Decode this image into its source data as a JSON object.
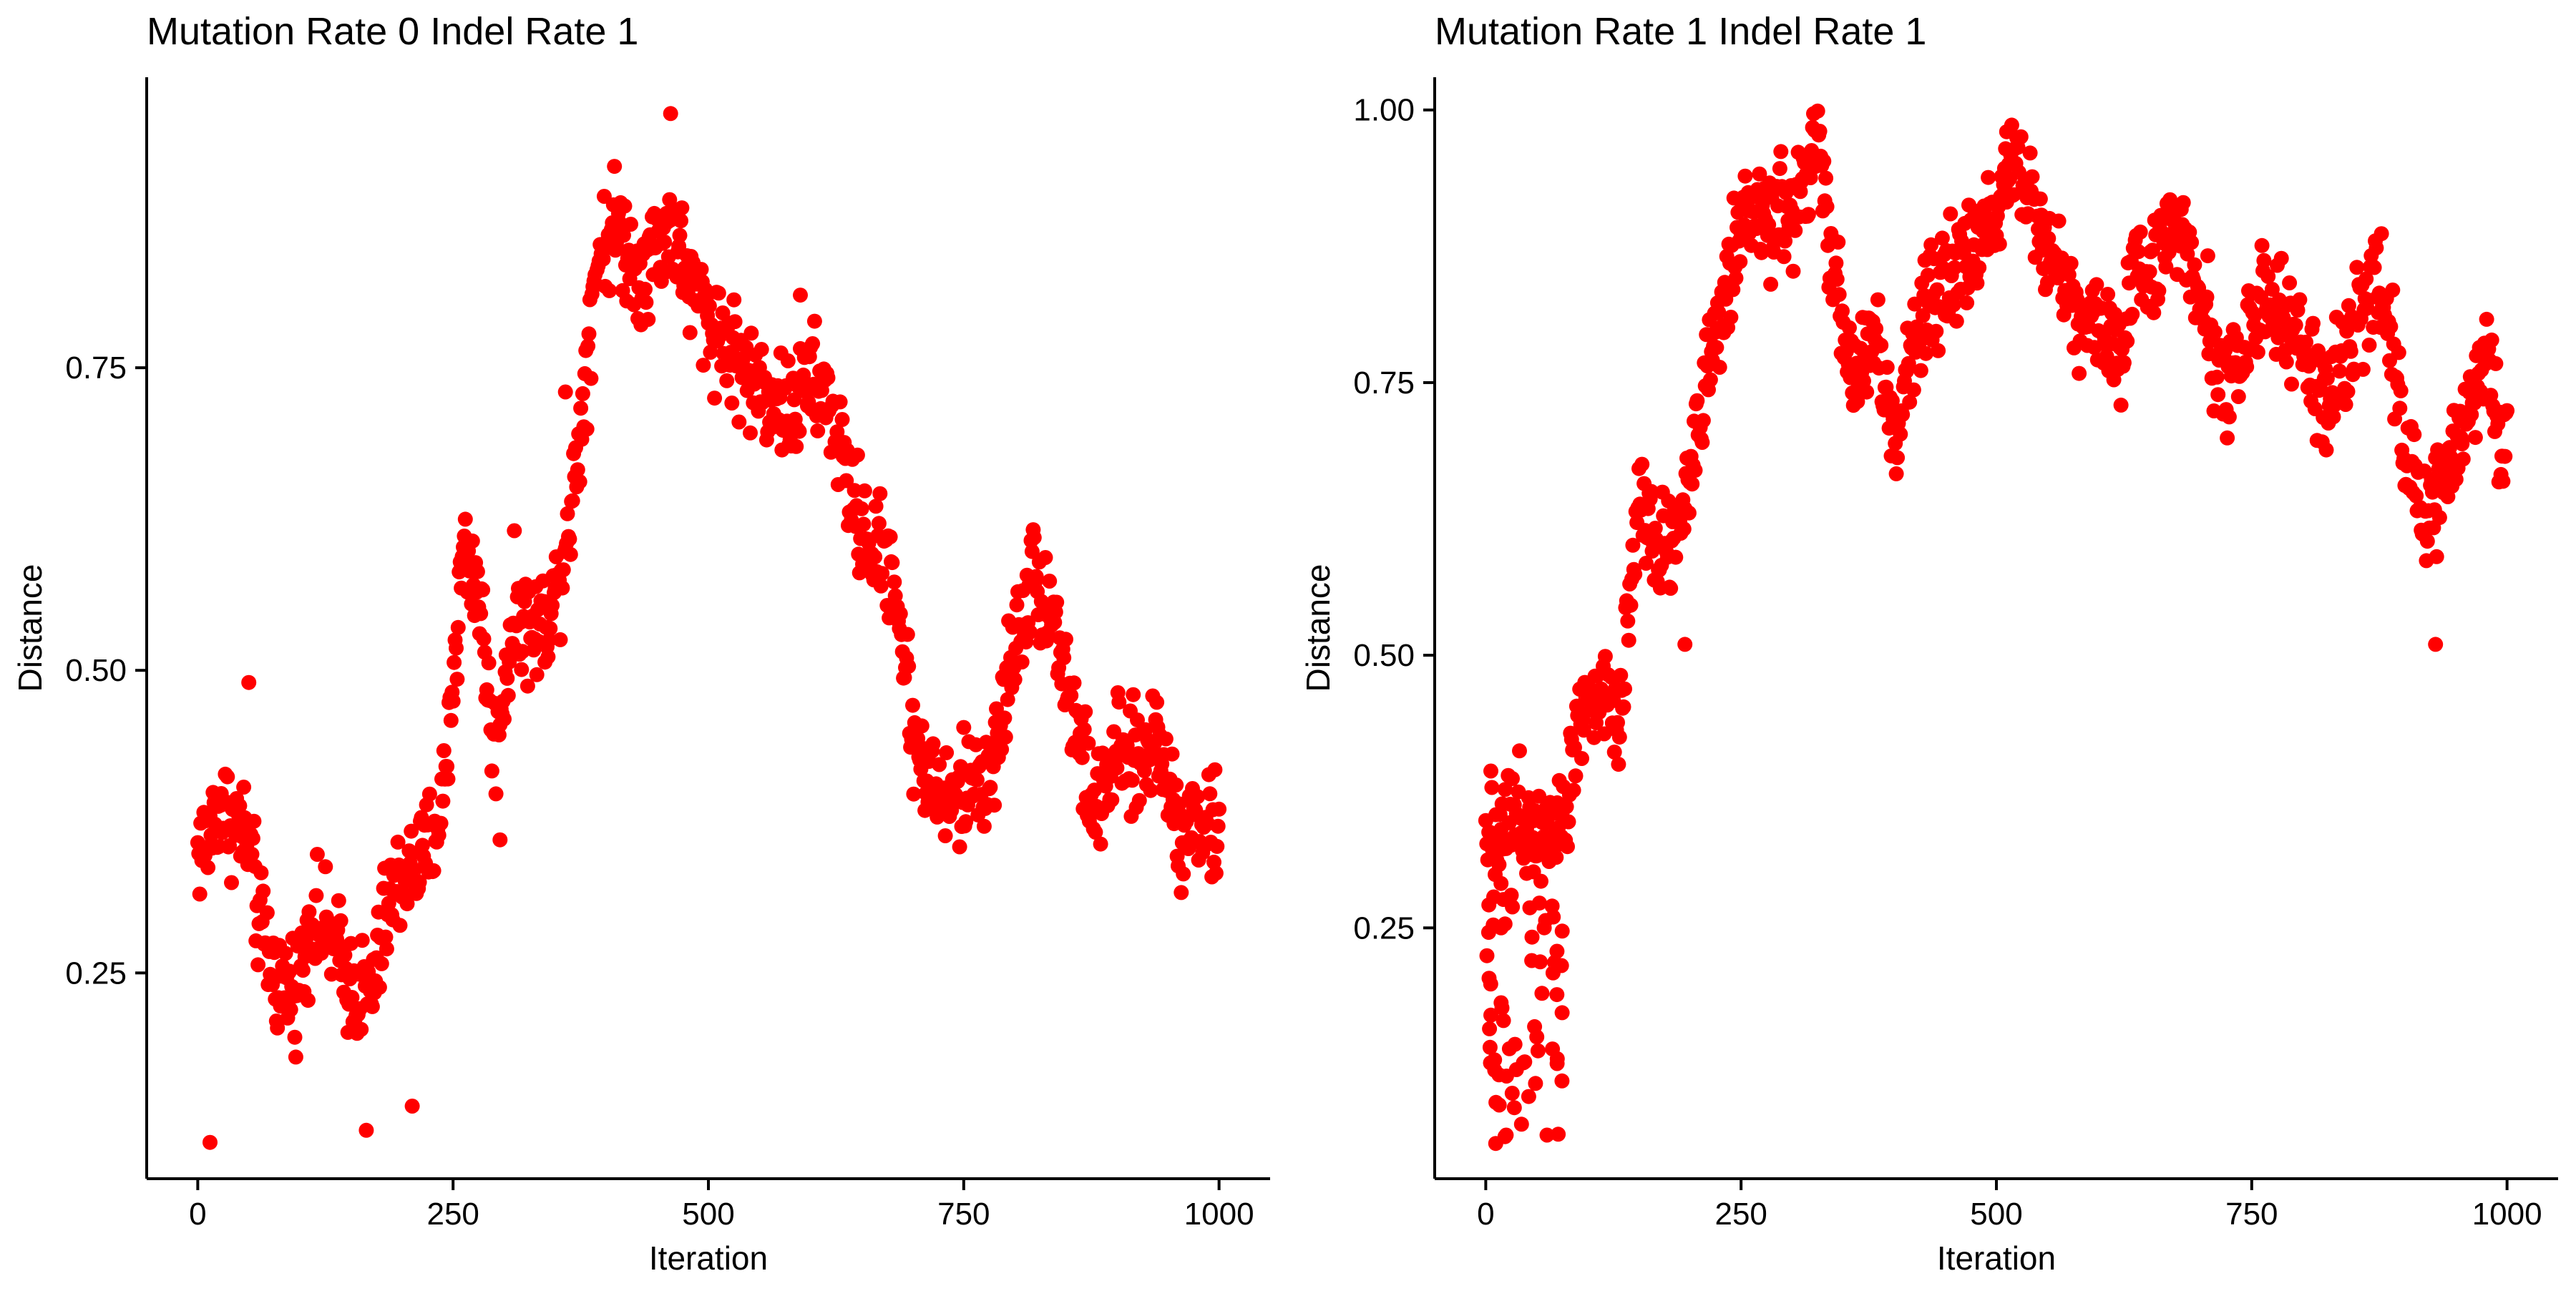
{
  "chart_data": [
    {
      "type": "scatter",
      "title": "Mutation Rate 0 Indel Rate 1",
      "xlabel": "Iteration",
      "ylabel": "Distance",
      "xlim": [
        -50,
        1050
      ],
      "ylim": [
        0.08,
        0.99
      ],
      "xticks": [
        0,
        250,
        500,
        750,
        1000
      ],
      "xtick_labels": [
        "0",
        "250",
        "500",
        "750",
        "1000"
      ],
      "yticks": [
        0.25,
        0.5,
        0.75
      ],
      "ytick_labels": [
        "0.25",
        "0.50",
        "0.75"
      ],
      "marker_color": "#ff0000",
      "grid": false,
      "trend": [
        [
          0,
          0.35
        ],
        [
          10,
          0.36
        ],
        [
          20,
          0.39
        ],
        [
          30,
          0.38
        ],
        [
          40,
          0.37
        ],
        [
          50,
          0.36
        ],
        [
          60,
          0.29
        ],
        [
          80,
          0.24
        ],
        [
          100,
          0.24
        ],
        [
          110,
          0.3
        ],
        [
          130,
          0.28
        ],
        [
          150,
          0.24
        ],
        [
          170,
          0.23
        ],
        [
          185,
          0.3
        ],
        [
          200,
          0.33
        ],
        [
          220,
          0.34
        ],
        [
          240,
          0.39
        ],
        [
          260,
          0.6
        ],
        [
          275,
          0.57
        ],
        [
          290,
          0.43
        ],
        [
          310,
          0.55
        ],
        [
          330,
          0.53
        ],
        [
          350,
          0.56
        ],
        [
          370,
          0.66
        ],
        [
          390,
          0.84
        ],
        [
          410,
          0.87
        ],
        [
          430,
          0.83
        ],
        [
          450,
          0.85
        ],
        [
          465,
          0.87
        ],
        [
          480,
          0.82
        ],
        [
          500,
          0.79
        ],
        [
          520,
          0.77
        ],
        [
          540,
          0.74
        ],
        [
          560,
          0.73
        ],
        [
          580,
          0.71
        ],
        [
          600,
          0.74
        ],
        [
          620,
          0.72
        ],
        [
          640,
          0.64
        ],
        [
          660,
          0.6
        ],
        [
          680,
          0.59
        ],
        [
          700,
          0.45
        ],
        [
          720,
          0.4
        ],
        [
          740,
          0.39
        ],
        [
          760,
          0.41
        ],
        [
          780,
          0.42
        ],
        [
          800,
          0.53
        ],
        [
          820,
          0.58
        ],
        [
          840,
          0.54
        ],
        [
          860,
          0.45
        ],
        [
          880,
          0.38
        ],
        [
          900,
          0.43
        ],
        [
          920,
          0.42
        ],
        [
          940,
          0.45
        ],
        [
          960,
          0.37
        ],
        [
          980,
          0.38
        ],
        [
          1000,
          0.36
        ]
      ],
      "noise": 0.028,
      "outliers": [
        [
          12,
          0.11
        ],
        [
          165,
          0.12
        ],
        [
          210,
          0.14
        ],
        [
          590,
          0.81
        ],
        [
          463,
          0.96
        ],
        [
          296,
          0.36
        ],
        [
          360,
          0.73
        ],
        [
          50,
          0.49
        ]
      ]
    },
    {
      "type": "scatter",
      "title": "Mutation Rate 1 Indel Rate 1",
      "xlabel": "Iteration",
      "ylabel": "Distance",
      "xlim": [
        -50,
        1050
      ],
      "ylim": [
        0.02,
        1.03
      ],
      "xticks": [
        0,
        250,
        500,
        750,
        1000
      ],
      "xtick_labels": [
        "0",
        "250",
        "500",
        "750",
        "1000"
      ],
      "yticks": [
        0.25,
        0.5,
        0.75,
        1.0
      ],
      "ytick_labels": [
        "0.25",
        "0.50",
        "0.75",
        "1.00"
      ],
      "marker_color": "#ff0000",
      "grid": false,
      "trend": [
        [
          0,
          0.35
        ],
        [
          20,
          0.35
        ],
        [
          40,
          0.35
        ],
        [
          60,
          0.35
        ],
        [
          80,
          0.36
        ],
        [
          90,
          0.45
        ],
        [
          110,
          0.47
        ],
        [
          130,
          0.44
        ],
        [
          150,
          0.65
        ],
        [
          170,
          0.6
        ],
        [
          190,
          0.62
        ],
        [
          210,
          0.72
        ],
        [
          240,
          0.85
        ],
        [
          260,
          0.9
        ],
        [
          290,
          0.9
        ],
        [
          310,
          0.92
        ],
        [
          325,
          0.97
        ],
        [
          340,
          0.85
        ],
        [
          360,
          0.75
        ],
        [
          380,
          0.8
        ],
        [
          400,
          0.69
        ],
        [
          420,
          0.8
        ],
        [
          440,
          0.84
        ],
        [
          460,
          0.85
        ],
        [
          480,
          0.87
        ],
        [
          500,
          0.91
        ],
        [
          515,
          0.97
        ],
        [
          530,
          0.93
        ],
        [
          550,
          0.88
        ],
        [
          570,
          0.83
        ],
        [
          600,
          0.8
        ],
        [
          620,
          0.78
        ],
        [
          640,
          0.85
        ],
        [
          660,
          0.87
        ],
        [
          680,
          0.9
        ],
        [
          700,
          0.84
        ],
        [
          720,
          0.75
        ],
        [
          740,
          0.77
        ],
        [
          760,
          0.84
        ],
        [
          780,
          0.8
        ],
        [
          800,
          0.78
        ],
        [
          820,
          0.73
        ],
        [
          840,
          0.76
        ],
        [
          860,
          0.82
        ],
        [
          880,
          0.85
        ],
        [
          900,
          0.68
        ],
        [
          920,
          0.62
        ],
        [
          940,
          0.66
        ],
        [
          960,
          0.73
        ],
        [
          980,
          0.77
        ],
        [
          1000,
          0.69
        ]
      ],
      "noise": 0.03,
      "outliers": [
        [
          20,
          0.06
        ],
        [
          35,
          0.07
        ],
        [
          60,
          0.06
        ],
        [
          10,
          0.09
        ],
        [
          50,
          0.15
        ],
        [
          25,
          0.28
        ],
        [
          5,
          0.17
        ],
        [
          45,
          0.22
        ],
        [
          30,
          0.12
        ],
        [
          55,
          0.19
        ],
        [
          65,
          0.27
        ],
        [
          40,
          0.3
        ],
        [
          15,
          0.25
        ],
        [
          70,
          0.13
        ],
        [
          930,
          0.51
        ],
        [
          195,
          0.51
        ],
        [
          325,
          0.98
        ],
        [
          510,
          0.98
        ]
      ],
      "outlier_band": {
        "x": [
          0,
          75
        ],
        "y": [
          0.05,
          0.33
        ],
        "count": 60
      }
    }
  ]
}
